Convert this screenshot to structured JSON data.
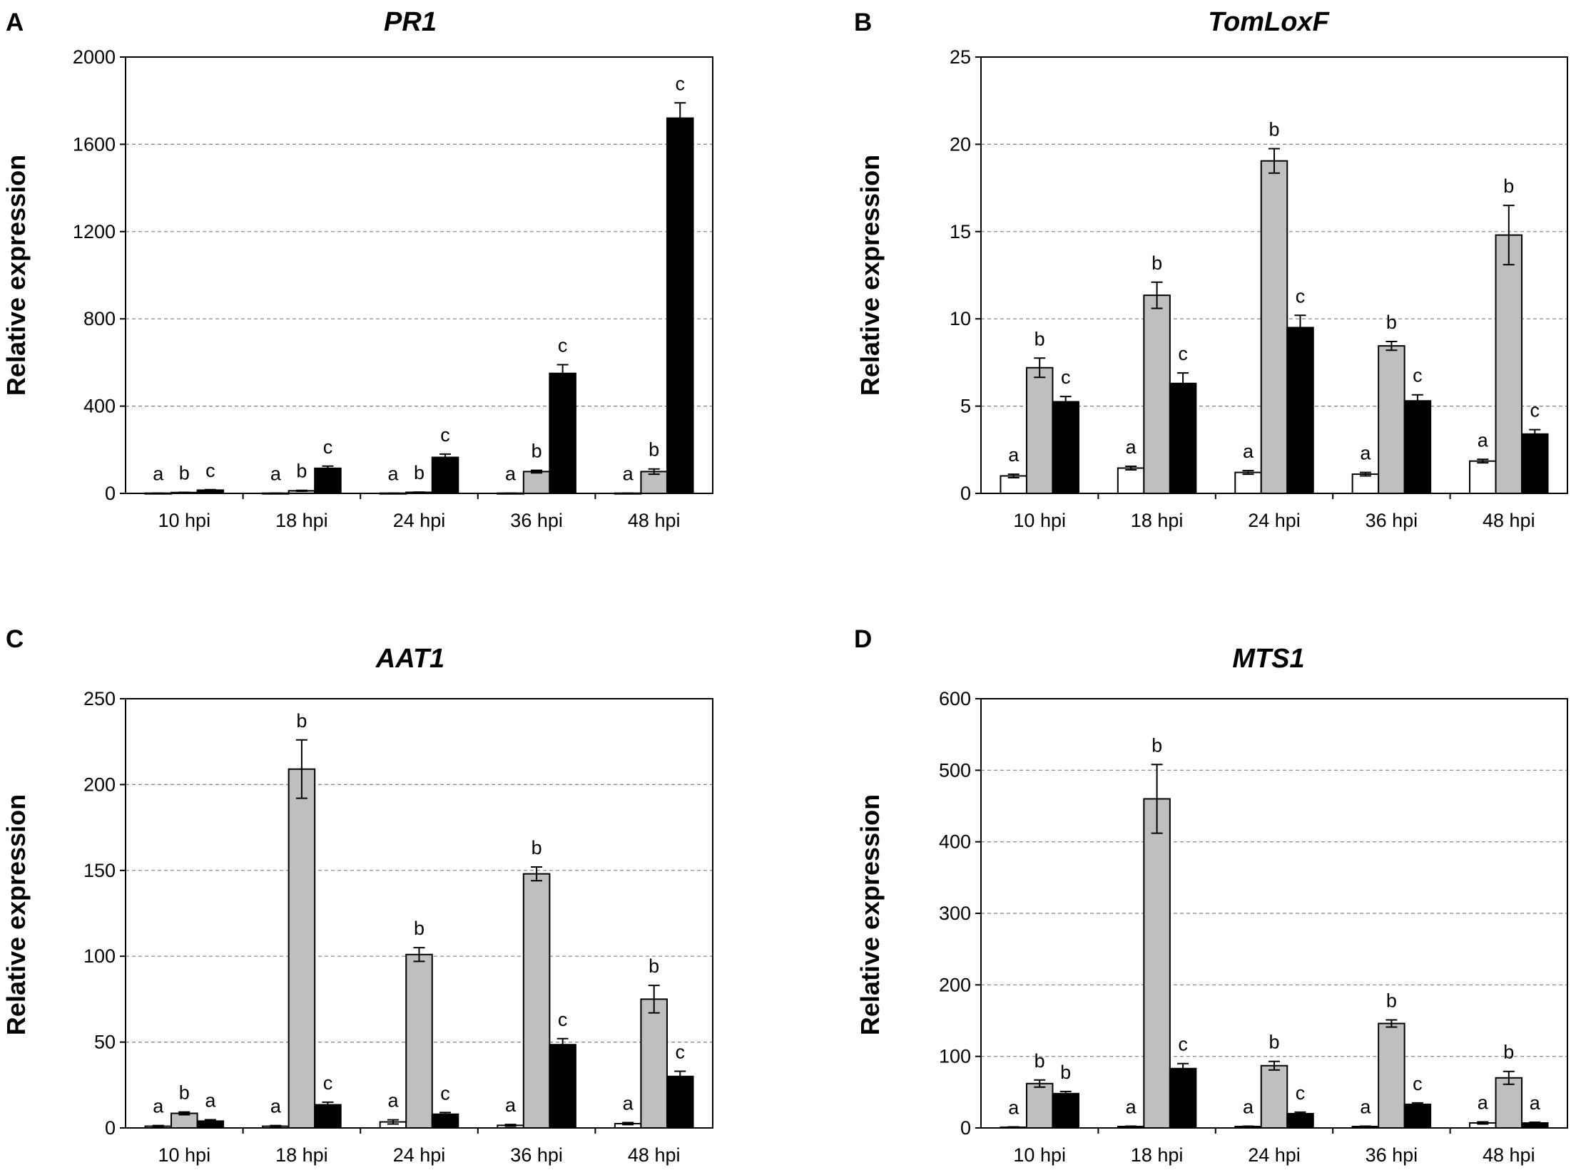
{
  "colors": {
    "mock": "#ffffff",
    "treatment_gray": "#bfbfbf",
    "treatment_black": "#000000",
    "grid": "#7f7f7f"
  },
  "chart_data": [
    {
      "panel": "A",
      "type": "bar",
      "title": "PR1",
      "ylabel": "Relative expression",
      "xlabel": "",
      "categories": [
        "10 hpi",
        "18 hpi",
        "24 hpi",
        "36 hpi",
        "48 hpi"
      ],
      "ylim": [
        0,
        2000
      ],
      "yticks": [
        0,
        400,
        800,
        1200,
        1600,
        2000
      ],
      "grid": true,
      "series": [
        {
          "name": "white",
          "values": [
            1,
            1,
            1,
            1,
            1
          ],
          "errors": [
            0,
            0,
            0,
            0,
            0
          ],
          "letters": [
            "a",
            "a",
            "a",
            "a",
            "a"
          ]
        },
        {
          "name": "gray",
          "values": [
            4,
            12,
            5,
            100,
            100
          ],
          "errors": [
            1,
            2,
            1,
            6,
            12
          ],
          "letters": [
            "b",
            "b",
            "b",
            "b",
            "b"
          ]
        },
        {
          "name": "black",
          "values": [
            15,
            115,
            165,
            550,
            1720
          ],
          "errors": [
            2,
            10,
            15,
            40,
            70
          ],
          "letters": [
            "c",
            "c",
            "c",
            "c",
            "c"
          ]
        }
      ]
    },
    {
      "panel": "B",
      "type": "bar",
      "title": "TomLoxF",
      "ylabel": "Relative expression",
      "xlabel": "",
      "categories": [
        "10 hpi",
        "18 hpi",
        "24 hpi",
        "36 hpi",
        "48 hpi"
      ],
      "ylim": [
        0,
        25
      ],
      "yticks": [
        0,
        5,
        10,
        15,
        20,
        25
      ],
      "grid": true,
      "series": [
        {
          "name": "white",
          "values": [
            1.0,
            1.45,
            1.2,
            1.1,
            1.85
          ],
          "errors": [
            0.1,
            0.1,
            0.1,
            0.1,
            0.1
          ],
          "letters": [
            "a",
            "a",
            "a",
            "a",
            "a"
          ]
        },
        {
          "name": "gray",
          "values": [
            7.2,
            11.35,
            19.05,
            8.45,
            14.8
          ],
          "errors": [
            0.55,
            0.75,
            0.7,
            0.25,
            1.7
          ],
          "letters": [
            "b",
            "b",
            "b",
            "b",
            "b"
          ]
        },
        {
          "name": "black",
          "values": [
            5.25,
            6.3,
            9.5,
            5.3,
            3.4
          ],
          "errors": [
            0.3,
            0.6,
            0.7,
            0.35,
            0.25
          ],
          "letters": [
            "c",
            "c",
            "c",
            "c",
            "c"
          ]
        }
      ]
    },
    {
      "panel": "C",
      "type": "bar",
      "title": "AAT1",
      "ylabel": "Relative expression",
      "xlabel": "",
      "categories": [
        "10 hpi",
        "18 hpi",
        "24 hpi",
        "36 hpi",
        "48 hpi"
      ],
      "ylim": [
        0,
        250
      ],
      "yticks": [
        0,
        50,
        100,
        150,
        200,
        250
      ],
      "grid": true,
      "series": [
        {
          "name": "white",
          "values": [
            1,
            1,
            3.5,
            1.5,
            2.5
          ],
          "errors": [
            0.4,
            0.4,
            1.2,
            0.5,
            0.6
          ],
          "letters": [
            "a",
            "a",
            "a",
            "a",
            "a"
          ]
        },
        {
          "name": "gray",
          "values": [
            8.5,
            209,
            101,
            148,
            75
          ],
          "errors": [
            0.8,
            17,
            4,
            4,
            8
          ],
          "letters": [
            "b",
            "b",
            "b",
            "b",
            "b"
          ]
        },
        {
          "name": "black",
          "values": [
            4,
            13.5,
            8,
            48.5,
            30
          ],
          "errors": [
            0.8,
            1.5,
            1,
            3.5,
            3
          ],
          "letters": [
            "a",
            "c",
            "c",
            "c",
            "c"
          ]
        }
      ]
    },
    {
      "panel": "D",
      "type": "bar",
      "title": "MTS1",
      "ylabel": "Relative expression",
      "xlabel": "",
      "categories": [
        "10 hpi",
        "18 hpi",
        "24 hpi",
        "36 hpi",
        "48 hpi"
      ],
      "ylim": [
        0,
        600
      ],
      "yticks": [
        0,
        100,
        200,
        300,
        400,
        500,
        600
      ],
      "grid": true,
      "series": [
        {
          "name": "white",
          "values": [
            1,
            2,
            2,
            2,
            7
          ],
          "errors": [
            0.5,
            0.5,
            0.5,
            0.5,
            1.5
          ],
          "letters": [
            "a",
            "a",
            "a",
            "a",
            "a"
          ]
        },
        {
          "name": "gray",
          "values": [
            62,
            460,
            87,
            146,
            70
          ],
          "errors": [
            5,
            48,
            6,
            5,
            9
          ],
          "letters": [
            "b",
            "b",
            "b",
            "b",
            "b"
          ]
        },
        {
          "name": "black",
          "values": [
            48,
            83,
            20,
            33,
            7
          ],
          "errors": [
            3,
            7,
            2,
            2,
            1
          ],
          "letters": [
            "b",
            "c",
            "c",
            "c",
            "a"
          ]
        }
      ]
    }
  ]
}
